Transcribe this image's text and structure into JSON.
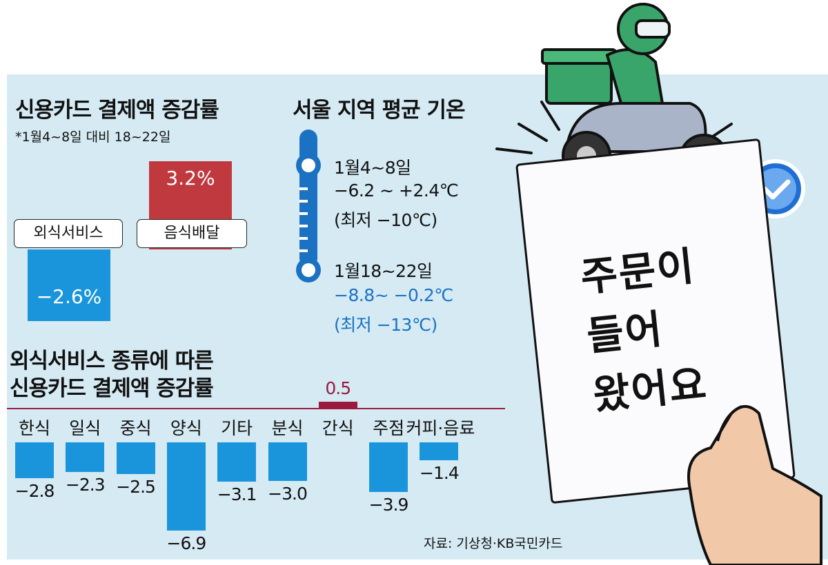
{
  "colors": {
    "panel_bg": "#d5eaf3",
    "neg_blue": "#1a95dc",
    "pos_red": "#c0393f",
    "pos_maroon": "#9b1b3f",
    "temp_blue": "#1b72c3"
  },
  "top_chart": {
    "title": "신용카드 결제액 증감률",
    "subtitle": "*1월4~8일 대비 18~22일"
  },
  "temperature": {
    "title": "서울 지역 평균 기온",
    "period1": {
      "label": "1월4~8일",
      "range": "−6.2 ~ +2.4℃",
      "min": "(최저 −10℃)"
    },
    "period2": {
      "label": "1월18~22일",
      "range": "−8.8~ −0.2℃",
      "min": "(최저 −13℃)"
    },
    "icon": "thermometer-icon"
  },
  "bottom_chart": {
    "title_line1": "외식서비스 종류에 따른",
    "title_line2": "신용카드 결제액 증감률"
  },
  "chart_data": [
    {
      "type": "bar",
      "categories": [
        "외식서비스",
        "음식배달"
      ],
      "values": [
        -2.6,
        3.2
      ],
      "value_labels": [
        "−2.6%",
        "3.2%"
      ]
    },
    {
      "type": "bar",
      "categories": [
        "한식",
        "일식",
        "중식",
        "양식",
        "기타",
        "분식",
        "간식",
        "주점",
        "커피·음료"
      ],
      "values": [
        -2.8,
        -2.3,
        -2.5,
        -6.9,
        -3.1,
        -3.0,
        0.5,
        -3.9,
        -1.4
      ],
      "value_labels": [
        "−2.8",
        "−2.3",
        "−2.5",
        "−6.9",
        "−3.1",
        "−3.0",
        "0.5",
        "−3.9",
        "−1.4"
      ]
    }
  ],
  "illustration": {
    "note_text": "주문이\n들어\n왔어요",
    "icons": [
      "delivery-rider-icon",
      "check-badge-icon",
      "hand-icon"
    ]
  },
  "source": "자료: 기상청·KB국민카드"
}
